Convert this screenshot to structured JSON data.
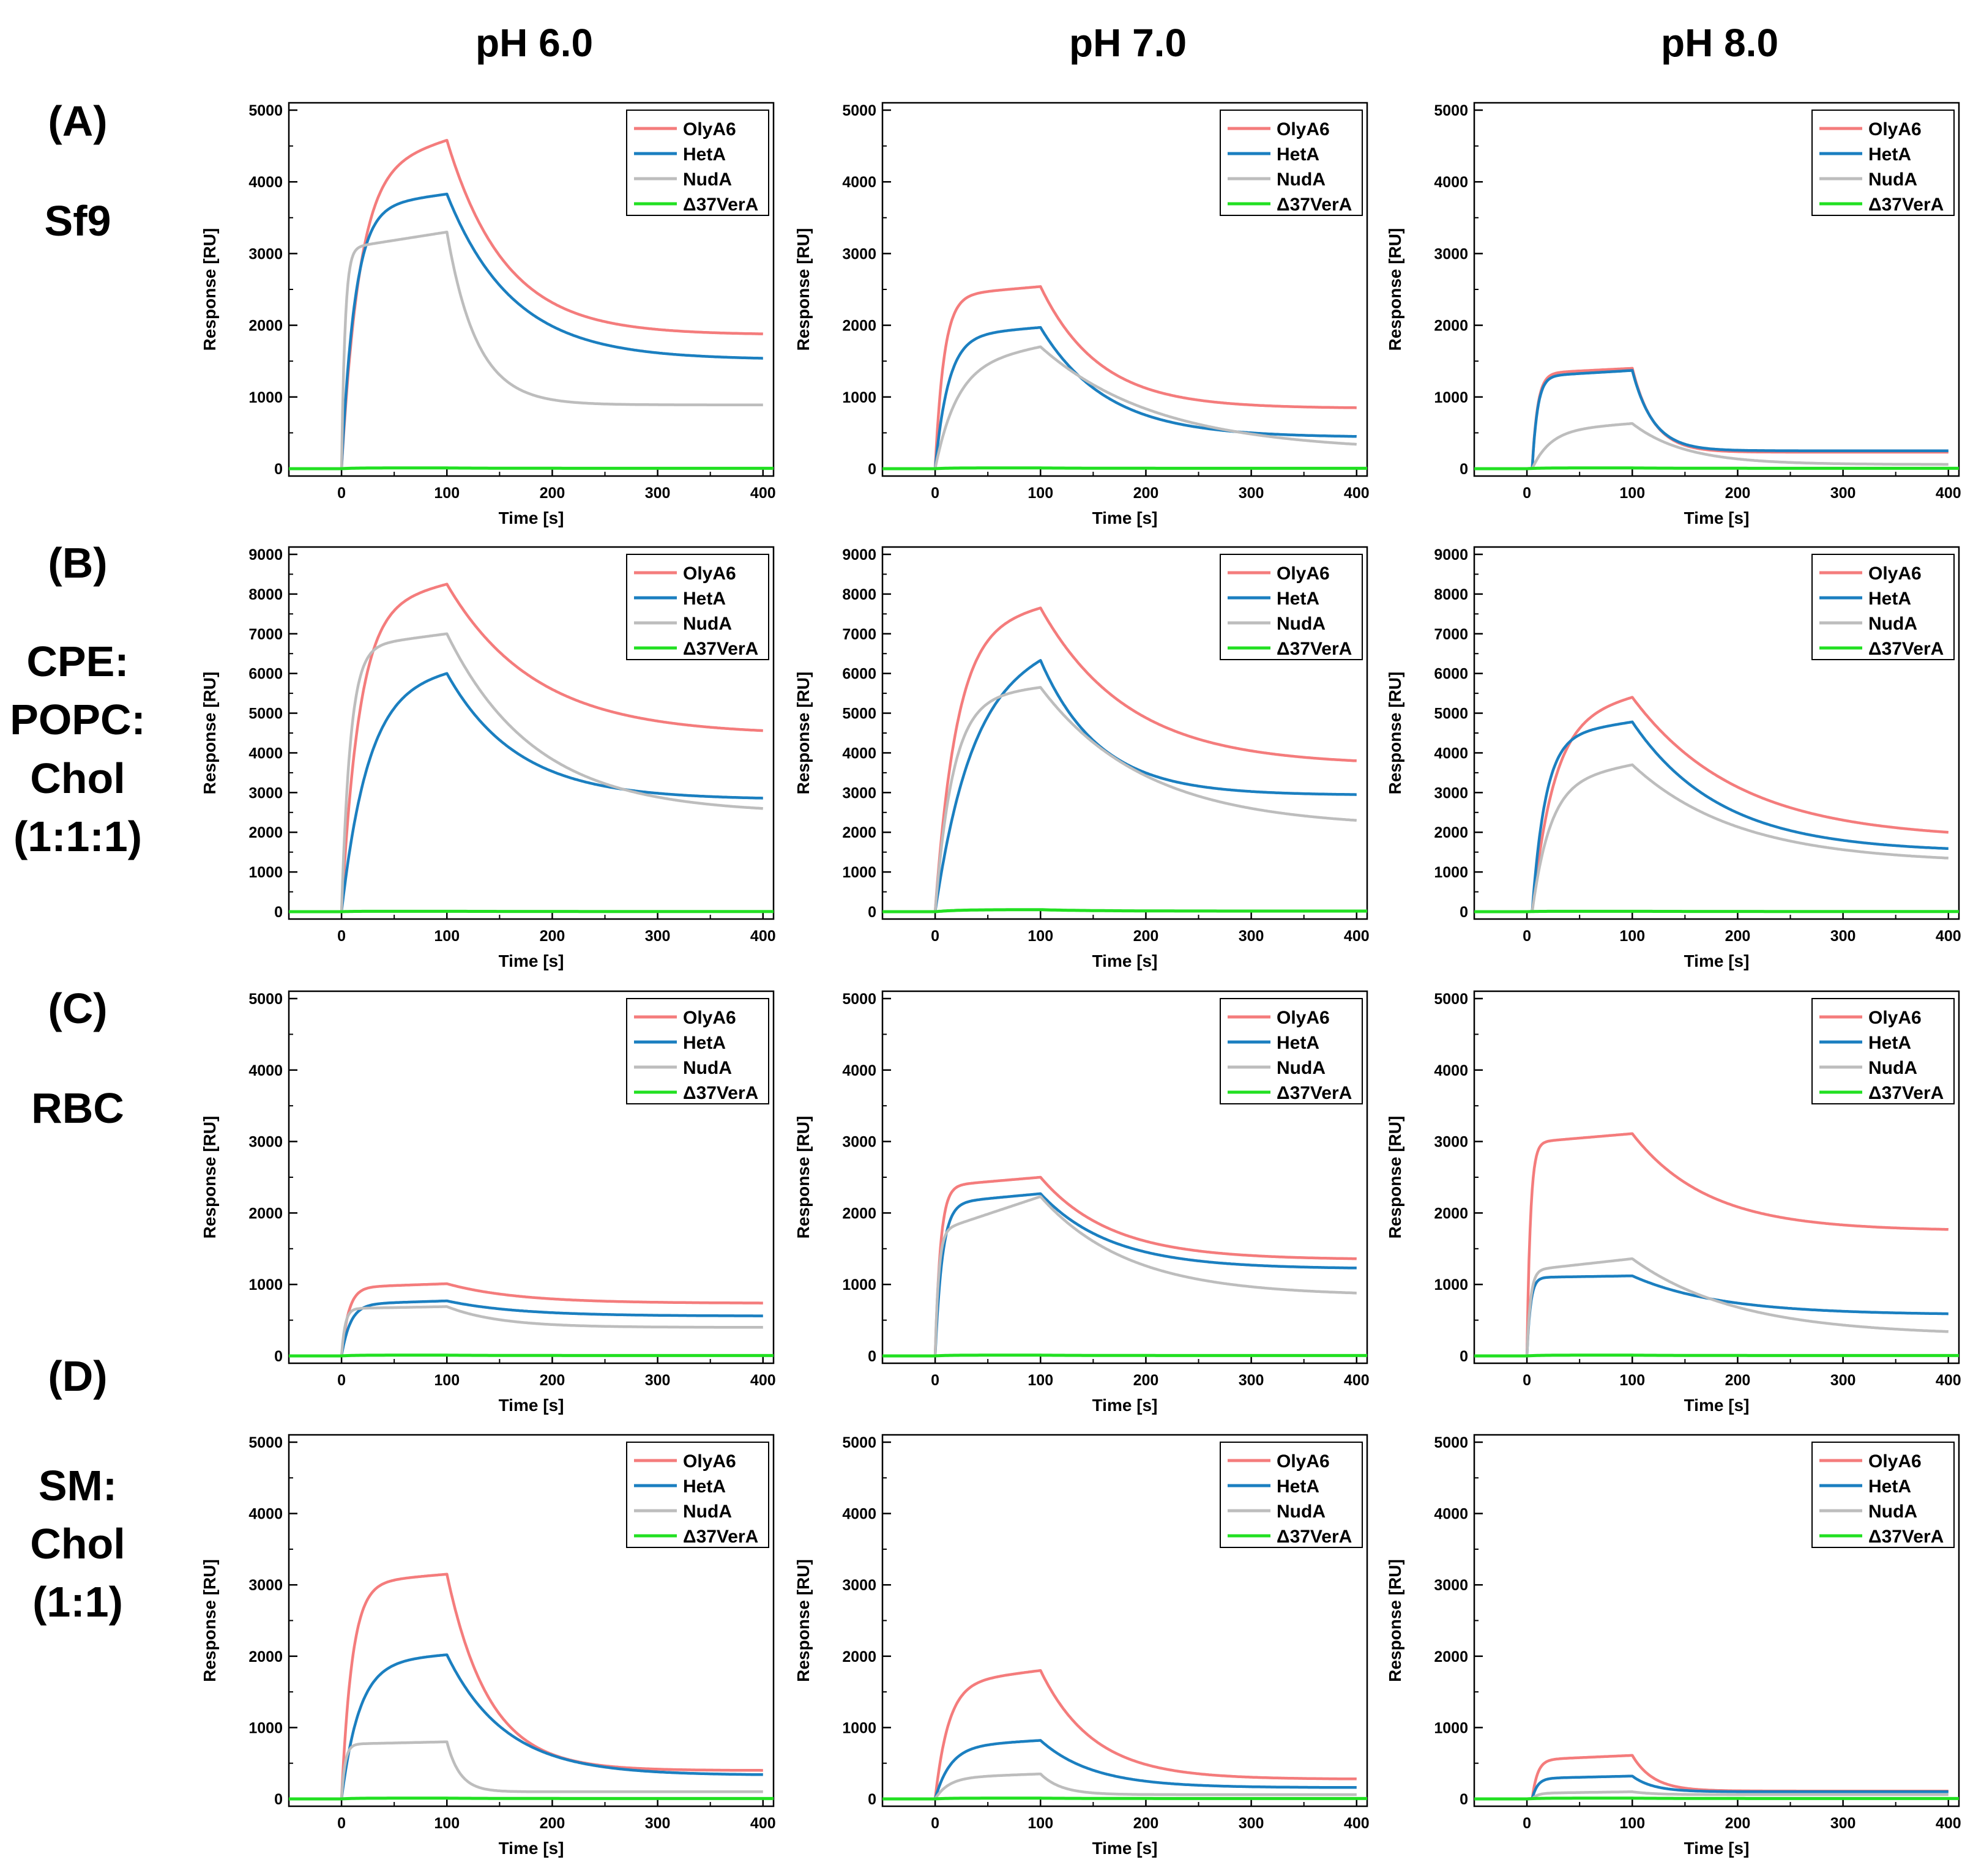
{
  "figure": {
    "column_titles": [
      "pH 6.0",
      "pH 7.0",
      "pH 8.0"
    ],
    "row_letters": [
      "(A)",
      "(B)",
      "(C)",
      "(D)"
    ],
    "row_names": [
      [
        "Sf9"
      ],
      [
        "CPE:",
        "POPC:",
        "Chol",
        "(1:1:1)"
      ],
      [
        "RBC"
      ],
      [
        "SM:",
        "Chol",
        "(1:1)"
      ]
    ]
  },
  "colors": {
    "OlyA6": "#f47c7c",
    "HetA": "#1b7fc0",
    "NudA": "#bdbdbd",
    "Δ37VerA": "#22e022",
    "axis": "#000000"
  },
  "chart_data": {
    "type": "line",
    "xlabel": "Time [s]",
    "ylabel": "Response [RU]",
    "xlim": [
      -50,
      410
    ],
    "xticks": [
      0,
      100,
      200,
      300,
      400
    ],
    "grid": false,
    "legend_position": "top-right",
    "series_names": [
      "OlyA6",
      "HetA",
      "NudA",
      "Δ37VerA"
    ],
    "panels": [
      {
        "row": 0,
        "col": 0,
        "ylim": [
          0,
          5000
        ],
        "yticks": [
          0,
          1000,
          2000,
          3000,
          4000,
          5000
        ],
        "series": [
          {
            "name": "OlyA6",
            "plateau": 4580,
            "k_on": 0.06,
            "drift": 0.09,
            "end": 1880,
            "k_off": 0.018
          },
          {
            "name": "HetA",
            "plateau": 3830,
            "k_on": 0.08,
            "drift": 0.05,
            "end": 1540,
            "k_off": 0.016
          },
          {
            "name": "NudA",
            "plateau": 3300,
            "k_on": 0.3,
            "drift": 0.07,
            "end": 890,
            "k_off": 0.035
          },
          {
            "name": "Δ37VerA",
            "plateau": 10,
            "k_on": 0.1,
            "drift": 0,
            "end": 5,
            "k_off": 0.02
          }
        ]
      },
      {
        "row": 0,
        "col": 1,
        "ylim": [
          0,
          5000
        ],
        "yticks": [
          0,
          1000,
          2000,
          3000,
          4000,
          5000
        ],
        "series": [
          {
            "name": "OlyA6",
            "plateau": 2540,
            "k_on": 0.12,
            "drift": 0.05,
            "end": 850,
            "k_off": 0.018
          },
          {
            "name": "HetA",
            "plateau": 1970,
            "k_on": 0.08,
            "drift": 0.06,
            "end": 450,
            "k_off": 0.016
          },
          {
            "name": "NudA",
            "plateau": 1700,
            "k_on": 0.05,
            "drift": 0.15,
            "end": 340,
            "k_off": 0.009
          },
          {
            "name": "Δ37VerA",
            "plateau": 10,
            "k_on": 0.1,
            "drift": 0,
            "end": 5,
            "k_off": 0.02
          }
        ]
      },
      {
        "row": 0,
        "col": 2,
        "ylim": [
          0,
          5000
        ],
        "yticks": [
          0,
          1000,
          2000,
          3000,
          4000,
          5000
        ],
        "series": [
          {
            "name": "OlyA6",
            "plateau": 1400,
            "k_on": 0.2,
            "drift": 0.05,
            "end": 230,
            "k_off": 0.05,
            "t0": 5
          },
          {
            "name": "HetA",
            "plateau": 1370,
            "k_on": 0.2,
            "drift": 0.06,
            "end": 250,
            "k_off": 0.05,
            "t0": 5
          },
          {
            "name": "NudA",
            "plateau": 630,
            "k_on": 0.06,
            "drift": 0.15,
            "end": 60,
            "k_off": 0.02,
            "t0": 5
          },
          {
            "name": "Δ37VerA",
            "plateau": 10,
            "k_on": 0.1,
            "drift": 0,
            "end": 5,
            "k_off": 0.02
          }
        ]
      },
      {
        "row": 1,
        "col": 0,
        "ylim": [
          0,
          9000
        ],
        "yticks": [
          0,
          1000,
          2000,
          3000,
          4000,
          5000,
          6000,
          7000,
          8000,
          9000
        ],
        "series": [
          {
            "name": "OlyA6",
            "plateau": 8250,
            "k_on": 0.06,
            "drift": 0.07,
            "end": 4560,
            "k_off": 0.012
          },
          {
            "name": "HetA",
            "plateau": 6000,
            "k_on": 0.04,
            "drift": 0.06,
            "end": 2860,
            "k_off": 0.015
          },
          {
            "name": "NudA",
            "plateau": 7000,
            "k_on": 0.12,
            "drift": 0.05,
            "end": 2600,
            "k_off": 0.012
          },
          {
            "name": "Δ37VerA",
            "plateau": 10,
            "k_on": 0.1,
            "drift": 0,
            "end": 5,
            "k_off": 0.02
          }
        ]
      },
      {
        "row": 1,
        "col": 1,
        "ylim": [
          0,
          9000
        ],
        "yticks": [
          0,
          1000,
          2000,
          3000,
          4000,
          5000,
          6000,
          7000,
          8000,
          9000
        ],
        "series": [
          {
            "name": "OlyA6",
            "plateau": 7650,
            "k_on": 0.05,
            "drift": 0.07,
            "end": 3800,
            "k_off": 0.012
          },
          {
            "name": "HetA",
            "plateau": 6330,
            "k_on": 0.03,
            "drift": 0.1,
            "end": 2950,
            "k_off": 0.018
          },
          {
            "name": "NudA",
            "plateau": 5650,
            "k_on": 0.06,
            "drift": 0.05,
            "end": 2300,
            "k_off": 0.01
          },
          {
            "name": "Δ37VerA",
            "plateau": 50,
            "k_on": 0.05,
            "drift": 0,
            "end": 15,
            "k_off": 0.02
          }
        ]
      },
      {
        "row": 1,
        "col": 2,
        "ylim": [
          0,
          9000
        ],
        "yticks": [
          0,
          1000,
          2000,
          3000,
          4000,
          5000,
          6000,
          7000,
          8000,
          9000
        ],
        "series": [
          {
            "name": "OlyA6",
            "plateau": 5400,
            "k_on": 0.05,
            "drift": 0.1,
            "end": 2000,
            "k_off": 0.01,
            "t0": 5
          },
          {
            "name": "HetA",
            "plateau": 4780,
            "k_on": 0.08,
            "drift": 0.08,
            "end": 1590,
            "k_off": 0.012,
            "t0": 5
          },
          {
            "name": "NudA",
            "plateau": 3700,
            "k_on": 0.06,
            "drift": 0.12,
            "end": 1350,
            "k_off": 0.01,
            "t0": 5
          },
          {
            "name": "Δ37VerA",
            "plateau": 10,
            "k_on": 0.1,
            "drift": 0,
            "end": 5,
            "k_off": 0.02
          }
        ]
      },
      {
        "row": 2,
        "col": 0,
        "ylim": [
          0,
          5000
        ],
        "yticks": [
          0,
          1000,
          2000,
          3000,
          4000,
          5000
        ],
        "series": [
          {
            "name": "OlyA6",
            "plateau": 1010,
            "k_on": 0.15,
            "drift": 0.05,
            "end": 740,
            "k_off": 0.015
          },
          {
            "name": "HetA",
            "plateau": 770,
            "k_on": 0.12,
            "drift": 0.06,
            "end": 560,
            "k_off": 0.015
          },
          {
            "name": "NudA",
            "plateau": 690,
            "k_on": 0.3,
            "drift": 0.04,
            "end": 400,
            "k_off": 0.02
          },
          {
            "name": "Δ37VerA",
            "plateau": 10,
            "k_on": 0.1,
            "drift": 0,
            "end": 5,
            "k_off": 0.02
          }
        ]
      },
      {
        "row": 2,
        "col": 1,
        "ylim": [
          0,
          5000
        ],
        "yticks": [
          0,
          1000,
          2000,
          3000,
          4000,
          5000
        ],
        "series": [
          {
            "name": "OlyA6",
            "plateau": 2500,
            "k_on": 0.2,
            "drift": 0.05,
            "end": 1360,
            "k_off": 0.015
          },
          {
            "name": "HetA",
            "plateau": 2270,
            "k_on": 0.15,
            "drift": 0.06,
            "end": 1230,
            "k_off": 0.015
          },
          {
            "name": "NudA",
            "plateau": 2230,
            "k_on": 0.3,
            "drift": 0.22,
            "end": 880,
            "k_off": 0.012
          },
          {
            "name": "Δ37VerA",
            "plateau": 10,
            "k_on": 0.1,
            "drift": 0,
            "end": 5,
            "k_off": 0.02
          }
        ]
      },
      {
        "row": 2,
        "col": 2,
        "ylim": [
          0,
          5000
        ],
        "yticks": [
          0,
          1000,
          2000,
          3000,
          4000,
          5000
        ],
        "series": [
          {
            "name": "OlyA6",
            "plateau": 3110,
            "k_on": 0.3,
            "drift": 0.04,
            "end": 1770,
            "k_off": 0.014
          },
          {
            "name": "HetA",
            "plateau": 1120,
            "k_on": 0.3,
            "drift": 0.02,
            "end": 590,
            "k_off": 0.012
          },
          {
            "name": "NudA",
            "plateau": 1360,
            "k_on": 0.3,
            "drift": 0.12,
            "end": 340,
            "k_off": 0.01
          },
          {
            "name": "Δ37VerA",
            "plateau": 10,
            "k_on": 0.1,
            "drift": 0,
            "end": 5,
            "k_off": 0.02
          }
        ]
      },
      {
        "row": 3,
        "col": 0,
        "ylim": [
          0,
          5000
        ],
        "yticks": [
          0,
          1000,
          2000,
          3000,
          4000,
          5000
        ],
        "series": [
          {
            "name": "OlyA6",
            "plateau": 3150,
            "k_on": 0.1,
            "drift": 0.04,
            "end": 400,
            "k_off": 0.025
          },
          {
            "name": "HetA",
            "plateau": 2020,
            "k_on": 0.06,
            "drift": 0.05,
            "end": 340,
            "k_off": 0.018
          },
          {
            "name": "NudA",
            "plateau": 800,
            "k_on": 0.3,
            "drift": 0.04,
            "end": 100,
            "k_off": 0.08
          },
          {
            "name": "Δ37VerA",
            "plateau": 10,
            "k_on": 0.1,
            "drift": 0,
            "end": 5,
            "k_off": 0.02
          }
        ]
      },
      {
        "row": 3,
        "col": 1,
        "ylim": [
          0,
          5000
        ],
        "yticks": [
          0,
          1000,
          2000,
          3000,
          4000,
          5000
        ],
        "series": [
          {
            "name": "OlyA6",
            "plateau": 1800,
            "k_on": 0.08,
            "drift": 0.1,
            "end": 280,
            "k_off": 0.02
          },
          {
            "name": "HetA",
            "plateau": 820,
            "k_on": 0.07,
            "drift": 0.1,
            "end": 160,
            "k_off": 0.02
          },
          {
            "name": "NudA",
            "plateau": 350,
            "k_on": 0.08,
            "drift": 0.15,
            "end": 60,
            "k_off": 0.05
          },
          {
            "name": "Δ37VerA",
            "plateau": 10,
            "k_on": 0.1,
            "drift": 0,
            "end": 5,
            "k_off": 0.02
          }
        ]
      },
      {
        "row": 3,
        "col": 2,
        "ylim": [
          0,
          5000
        ],
        "yticks": [
          0,
          1000,
          2000,
          3000,
          4000,
          5000
        ],
        "series": [
          {
            "name": "OlyA6",
            "plateau": 610,
            "k_on": 0.2,
            "drift": 0.1,
            "end": 110,
            "k_off": 0.05,
            "t0": 5
          },
          {
            "name": "HetA",
            "plateau": 320,
            "k_on": 0.2,
            "drift": 0.1,
            "end": 100,
            "k_off": 0.05,
            "t0": 5
          },
          {
            "name": "NudA",
            "plateau": 100,
            "k_on": 0.2,
            "drift": 0.2,
            "end": 60,
            "k_off": 0.05,
            "t0": 5
          },
          {
            "name": "Δ37VerA",
            "plateau": 10,
            "k_on": 0.1,
            "drift": 0,
            "end": 5,
            "k_off": 0.02
          }
        ]
      }
    ]
  }
}
